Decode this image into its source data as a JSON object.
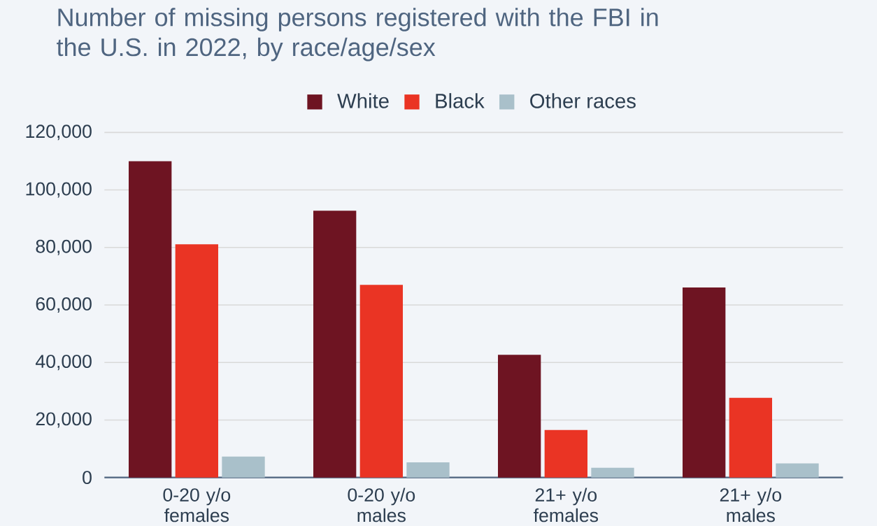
{
  "chart_data": {
    "type": "bar",
    "title": "Number of missing persons registered with the FBI in the U.S. in 2022, by race/age/sex",
    "categories": [
      "0-20 y/o females",
      "0-20 y/o males",
      "21+ y/o females",
      "21+ y/o males"
    ],
    "series": [
      {
        "name": "White",
        "color": "#6e1422",
        "values": [
          110000,
          92800,
          42700,
          66100
        ]
      },
      {
        "name": "Black",
        "color": "#ea3424",
        "values": [
          81100,
          67000,
          16500,
          27700
        ]
      },
      {
        "name": "Other races",
        "color": "#a9c0ca",
        "values": [
          7300,
          5300,
          3400,
          4900
        ]
      }
    ],
    "ylim": [
      0,
      120000
    ],
    "yticks": [
      {
        "value": 0,
        "label": "0"
      },
      {
        "value": 20000,
        "label": "20,000"
      },
      {
        "value": 40000,
        "label": "40,000"
      },
      {
        "value": 60000,
        "label": "60,000"
      },
      {
        "value": 80000,
        "label": "80,000"
      },
      {
        "value": 100000,
        "label": "100,000"
      },
      {
        "value": 120000,
        "label": "120,000"
      }
    ],
    "grid": "y",
    "legend": "top"
  }
}
